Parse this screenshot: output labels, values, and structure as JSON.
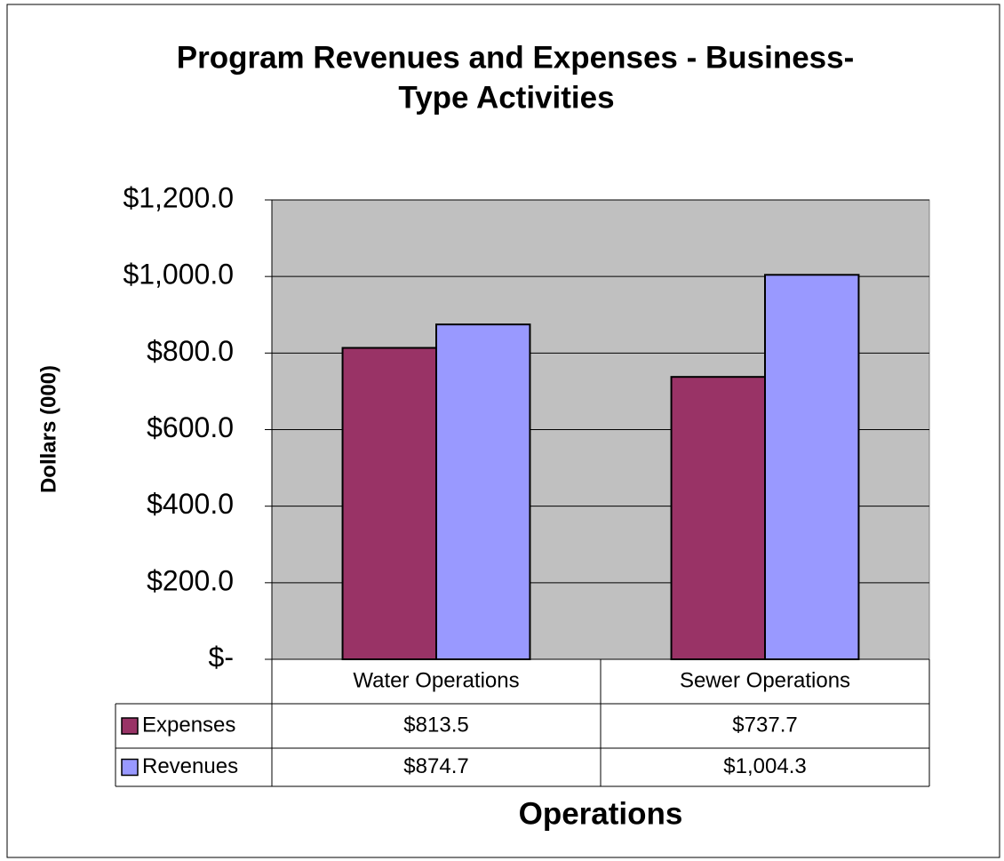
{
  "chart_data": {
    "type": "bar",
    "title": [
      "Program Revenues and Expenses - Business-",
      "Type Activities"
    ],
    "y_label": "Dollars (000)",
    "x_label": "Operations",
    "categories": [
      "Water Operations",
      "Sewer Operations"
    ],
    "series": [
      {
        "name": "Expenses",
        "color": "#993366",
        "values": [
          813.5,
          737.7
        ],
        "value_labels": [
          "$813.5",
          "$737.7"
        ]
      },
      {
        "name": "Revenues",
        "color": "#9999ff",
        "values": [
          874.7,
          1004.3
        ],
        "value_labels": [
          "$874.7",
          "$1,004.3"
        ]
      }
    ],
    "ylim": [
      0,
      1200
    ],
    "yticks": [
      {
        "value": 0,
        "label": "$-"
      },
      {
        "value": 200,
        "label": "$200.0"
      },
      {
        "value": 400,
        "label": "$400.0"
      },
      {
        "value": 600,
        "label": "$600.0"
      },
      {
        "value": 800,
        "label": "$800.0"
      },
      {
        "value": 1000,
        "label": "$1,000.0"
      },
      {
        "value": 1200,
        "label": "$1,200.0"
      }
    ],
    "grid": true,
    "plot_background": "#c0c0c0"
  }
}
